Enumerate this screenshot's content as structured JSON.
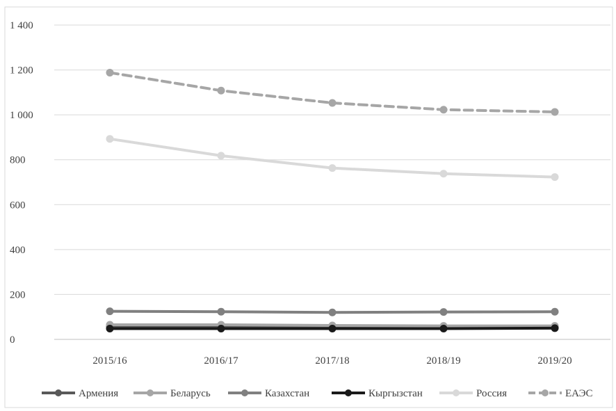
{
  "chart_data": {
    "type": "line",
    "title": "",
    "xlabel": "",
    "ylabel": "",
    "categories": [
      "2015/16",
      "2016/17",
      "2017/18",
      "2018/19",
      "2019/20"
    ],
    "y_ticks": [
      "0",
      "200",
      "400",
      "600",
      "800",
      "1 000",
      "1 200",
      "1 400"
    ],
    "ylim": [
      0,
      1400
    ],
    "grid": true,
    "legend_position": "bottom",
    "series": [
      {
        "name": "Армения",
        "color": "#595959",
        "dashed": false,
        "values": [
          58,
          60,
          58,
          55,
          55
        ]
      },
      {
        "name": "Беларусь",
        "color": "#a6a6a6",
        "dashed": false,
        "values": [
          65,
          65,
          62,
          60,
          60
        ]
      },
      {
        "name": "Казахстан",
        "color": "#808080",
        "dashed": false,
        "values": [
          125,
          123,
          120,
          122,
          123
        ]
      },
      {
        "name": "Кыргызстан",
        "color": "#1a1a1a",
        "dashed": false,
        "values": [
          48,
          48,
          48,
          48,
          50
        ]
      },
      {
        "name": "Россия",
        "color": "#d9d9d9",
        "dashed": false,
        "values": [
          893,
          818,
          763,
          738,
          723
        ]
      },
      {
        "name": "ЕАЭС",
        "color": "#a6a6a6",
        "dashed": true,
        "values": [
          1188,
          1108,
          1053,
          1023,
          1013
        ]
      }
    ]
  }
}
